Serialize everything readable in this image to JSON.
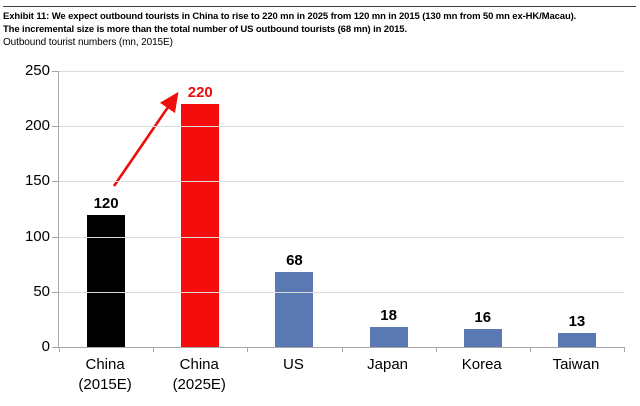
{
  "header": {
    "title_line1": "Exhibit 11: We expect outbound tourists in China to rise to 220 mn in 2025 from 120 mn in 2015 (130 mn from 50 mn ex-HK/Macau).",
    "title_line2": "The incremental size is more than the total number of US outbound tourists (68 mn) in 2015.",
    "subtitle": "Outbound tourist numbers (mn, 2015E)"
  },
  "chart_data": {
    "type": "bar",
    "title": "Outbound tourist numbers (mn, 2015E)",
    "categories": [
      "China (2015E)",
      "China (2025E)",
      "US",
      "Japan",
      "Korea",
      "Taiwan"
    ],
    "values": [
      120,
      220,
      68,
      18,
      16,
      13
    ],
    "ylim": [
      0,
      250
    ],
    "yticks": [
      0,
      50,
      100,
      150,
      200,
      250
    ],
    "grid": "horizontal",
    "legend": "none",
    "bars": [
      {
        "label_lines": [
          "China",
          "(2015E)"
        ],
        "value": 120,
        "color": "#000000",
        "value_label_color": "#000000"
      },
      {
        "label_lines": [
          "China",
          "(2025E)"
        ],
        "value": 220,
        "color": "#f50d0d",
        "value_label_color": "#ee0c0c"
      },
      {
        "label_lines": [
          "US"
        ],
        "value": 68,
        "color": "#5a79b2",
        "value_label_color": "#000000"
      },
      {
        "label_lines": [
          "Japan"
        ],
        "value": 18,
        "color": "#5a79b2",
        "value_label_color": "#000000"
      },
      {
        "label_lines": [
          "Korea"
        ],
        "value": 16,
        "color": "#5a79b2",
        "value_label_color": "#000000"
      },
      {
        "label_lines": [
          "Taiwan"
        ],
        "value": 13,
        "color": "#5a79b2",
        "value_label_color": "#000000"
      }
    ],
    "annotation": {
      "type": "arrow",
      "color": "#ee0c0c",
      "from_category": "China (2015E)",
      "to_category": "China (2025E)"
    },
    "colors": {
      "gridline": "#dcdcdc",
      "axis": "#a6a6a6",
      "highlight_red": "#f50d0d",
      "default_blue": "#5a79b2",
      "base_black": "#000000"
    }
  }
}
